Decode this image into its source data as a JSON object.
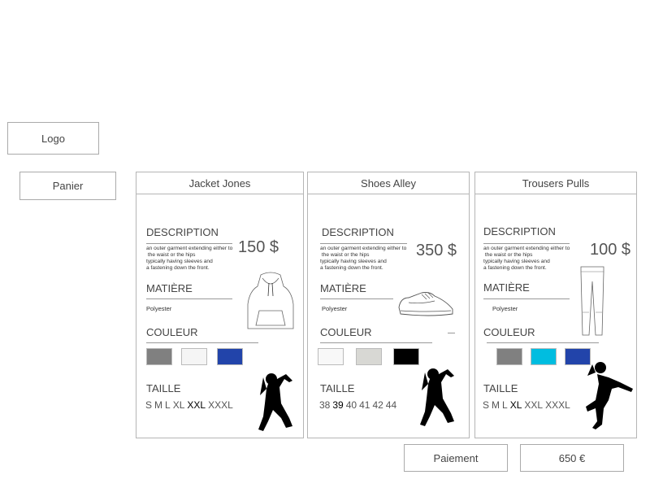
{
  "header": {
    "logo_label": "Logo"
  },
  "sidebar": {
    "cart_label": "Panier"
  },
  "labels": {
    "description": "DESCRIPTION",
    "material": "MATIÈRE",
    "color": "COULEUR",
    "size": "TAILLE"
  },
  "products": [
    {
      "title": "Jacket Jones",
      "description": "an outer garment extending either to\n the waist or the hips\ntypically having sleeves and\na fastening down the front.",
      "price": "150 $",
      "material": "Polyester",
      "image_icon": "hoodie-icon",
      "colors": [
        "#808080",
        "#f5f5f5",
        "#2244aa"
      ],
      "sizes": [
        "S",
        "M",
        "L",
        "XL",
        "XXL",
        "XXXL"
      ],
      "selected_size": "XXL"
    },
    {
      "title": "Shoes Alley",
      "description": "an outer garment extending either to\n the waist or the hips\ntypically having sleeves and\na fastening down the front.",
      "price": "350 $",
      "material": "Polyester",
      "image_icon": "sneaker-icon",
      "colors": [
        "#f8f8f8",
        "#d8d8d4",
        "#000000"
      ],
      "sizes": [
        "38",
        "39",
        "40",
        "41",
        "42",
        "44"
      ],
      "selected_size": "39"
    },
    {
      "title": "Trousers  Pulls",
      "description": "an outer garment extending either to\n the waist or the hips\ntypically having sleeves and\na fastening down the front.",
      "price": "100 $",
      "material": "Polyester",
      "image_icon": "jeans-icon",
      "colors": [
        "#808080",
        "#00bde0",
        "#2244aa"
      ],
      "sizes": [
        "S",
        "M",
        "L",
        "XL",
        "XXL",
        "XXXL"
      ],
      "selected_size": "XL"
    }
  ],
  "footer": {
    "pay_label": "Paiement",
    "total": "650 €"
  }
}
